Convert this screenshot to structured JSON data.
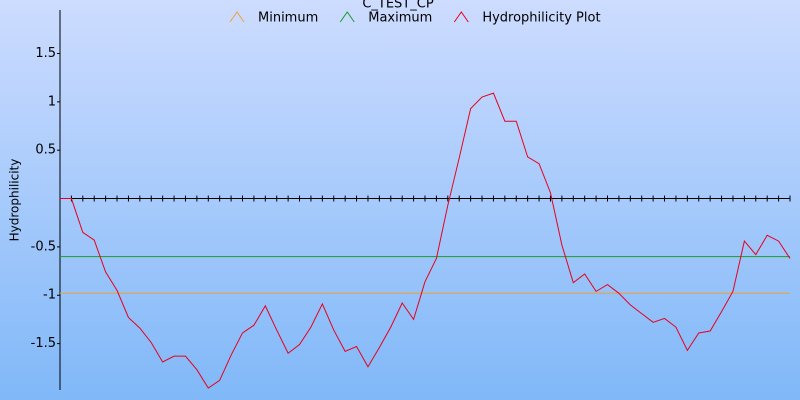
{
  "chart_data": {
    "type": "line",
    "title": "C_TEST_CP",
    "y_label": "Hydrophilicity",
    "ylim": [
      -1.98,
      1.95
    ],
    "yticks": [
      1.5,
      1,
      0.5,
      -0.5,
      -1,
      -1.5
    ],
    "series": [
      {
        "name": "Minimum",
        "color": "#f0a030",
        "value": -0.98
      },
      {
        "name": "Maximum",
        "color": "#1a9a2a",
        "value": -0.6
      },
      {
        "name": "Hydrophilicity Plot",
        "color": "#e8001c",
        "values": [
          0,
          0,
          -0.35,
          -0.43,
          -0.76,
          -0.95,
          -1.23,
          -1.34,
          -1.49,
          -1.69,
          -1.63,
          -1.63,
          -1.77,
          -1.96,
          -1.88,
          -1.62,
          -1.39,
          -1.31,
          -1.11,
          -1.36,
          -1.6,
          -1.51,
          -1.33,
          -1.09,
          -1.36,
          -1.58,
          -1.53,
          -1.74,
          -1.54,
          -1.33,
          -1.08,
          -1.25,
          -0.86,
          -0.62,
          -0.07,
          0.42,
          0.93,
          1.05,
          1.09,
          0.8,
          0.8,
          0.43,
          0.36,
          0.06,
          -0.48,
          -0.87,
          -0.78,
          -0.96,
          -0.89,
          -0.98,
          -1.1,
          -1.19,
          -1.28,
          -1.24,
          -1.33,
          -1.57,
          -1.39,
          -1.37,
          -1.17,
          -0.96,
          -0.44,
          -0.58,
          -0.38,
          -0.44,
          -0.62
        ]
      }
    ]
  }
}
